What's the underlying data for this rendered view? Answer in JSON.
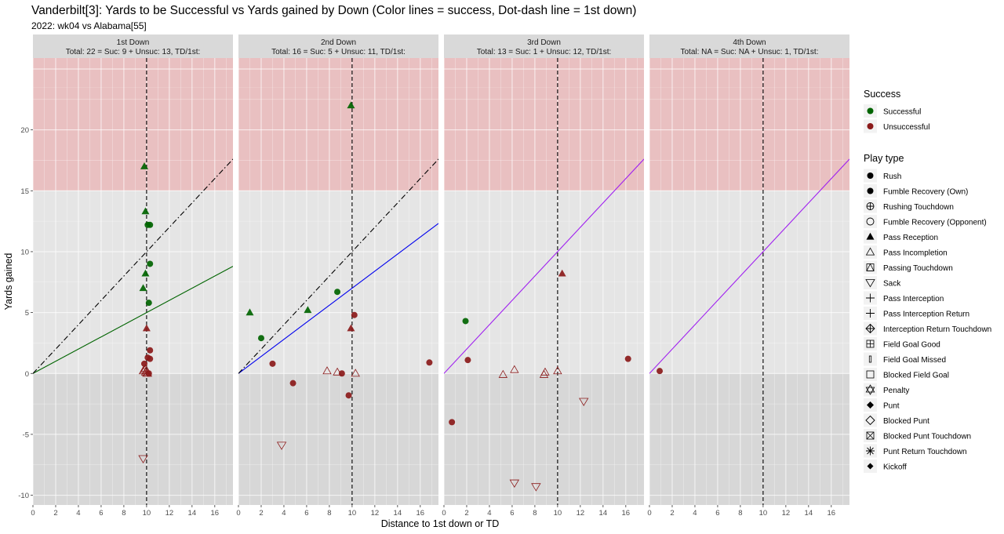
{
  "chart_data": {
    "type": "scatter",
    "title": "Vanderbilt[3]: Yards to be Successful vs Yards gained by Down  (Color lines = success, Dot-dash line = 1st down)",
    "subtitle": "2022: wk04 vs Alabama[55]",
    "xlabel": "Distance to 1st down or TD",
    "ylabel": "Yards gained",
    "xlim": [
      0,
      17.6
    ],
    "ylim": [
      -10.8,
      25.9
    ],
    "x_ticks": [
      0,
      2,
      4,
      6,
      8,
      10,
      12,
      14,
      16
    ],
    "y_ticks": [
      -10,
      -5,
      0,
      5,
      10,
      15,
      20
    ],
    "grid": true,
    "bands": [
      {
        "from": 15,
        "to": 23.5,
        "color": "#e9c0c1"
      },
      {
        "from": 0,
        "to": 15,
        "color": "#e5e5e5"
      },
      {
        "from": -10.8,
        "to": 0,
        "color": "#d7d7d7"
      }
    ],
    "colors": {
      "successful": "#006400",
      "unsuccessful": "#8b1a1a",
      "line_1st": "#006400",
      "line_2nd": "#0000ee",
      "line_3rd4th": "#a020f0"
    },
    "legend": {
      "position": "right",
      "success_title": "Success",
      "success": [
        {
          "label": "Successful",
          "color": "#006400"
        },
        {
          "label": "Unsuccessful",
          "color": "#8b1a1a"
        }
      ],
      "playtype_title": "Play type",
      "playtypes": [
        {
          "label": "Rush",
          "shape": "circle-filled"
        },
        {
          "label": "Fumble Recovery (Own)",
          "shape": "circle-filled"
        },
        {
          "label": "Rushing Touchdown",
          "shape": "circle-plus"
        },
        {
          "label": "Fumble Recovery (Opponent)",
          "shape": "circle-open"
        },
        {
          "label": "Pass Reception",
          "shape": "triangle-filled"
        },
        {
          "label": "Pass Incompletion",
          "shape": "triangle-open"
        },
        {
          "label": "Passing Touchdown",
          "shape": "square-triangle"
        },
        {
          "label": "Sack",
          "shape": "triangle-down-open"
        },
        {
          "label": "Pass Interception",
          "shape": "plus"
        },
        {
          "label": "Pass Interception Return",
          "shape": "plus"
        },
        {
          "label": "Interception Return Touchdown",
          "shape": "diamond-plus"
        },
        {
          "label": "Field Goal Good",
          "shape": "square-plus"
        },
        {
          "label": "Field Goal Missed",
          "shape": "small-rect"
        },
        {
          "label": "Blocked Field Goal",
          "shape": "square-open"
        },
        {
          "label": "Penalty",
          "shape": "star-of-david"
        },
        {
          "label": "Punt",
          "shape": "diamond-filled"
        },
        {
          "label": "Blocked Punt",
          "shape": "diamond-open"
        },
        {
          "label": "Blocked Punt Touchdown",
          "shape": "square-x"
        },
        {
          "label": "Punt Return Touchdown",
          "shape": "asterisk"
        },
        {
          "label": "Kickoff",
          "shape": "diamond-filled-small"
        }
      ]
    },
    "panels": [
      {
        "strip_title": "1st Down",
        "strip_subtitle": "Total: 22 = Suc: 9 + Unsuc: 13, TD/1st:",
        "success_slope": 0.5,
        "success_color": "#006400",
        "first_down_slope": 1.0,
        "show_first_down_line": true,
        "points": [
          {
            "x": 9.8,
            "y": 17.0,
            "shape": "triangle-filled",
            "success": true
          },
          {
            "x": 9.9,
            "y": 13.3,
            "shape": "triangle-filled",
            "success": true
          },
          {
            "x": 10.3,
            "y": 12.2,
            "shape": "circle-filled",
            "success": true
          },
          {
            "x": 10.1,
            "y": 12.2,
            "shape": "circle-filled",
            "success": true
          },
          {
            "x": 10.3,
            "y": 9.0,
            "shape": "circle-filled",
            "success": true
          },
          {
            "x": 9.9,
            "y": 8.2,
            "shape": "triangle-filled",
            "success": true
          },
          {
            "x": 9.7,
            "y": 7.0,
            "shape": "triangle-filled",
            "success": true
          },
          {
            "x": 10.2,
            "y": 5.8,
            "shape": "circle-filled",
            "success": true
          },
          {
            "x": 10.0,
            "y": 3.7,
            "shape": "triangle-filled",
            "success": false
          },
          {
            "x": 10.3,
            "y": 1.9,
            "shape": "circle-filled",
            "success": false
          },
          {
            "x": 10.1,
            "y": 1.3,
            "shape": "circle-filled",
            "success": false
          },
          {
            "x": 10.3,
            "y": 1.2,
            "shape": "circle-filled",
            "success": false
          },
          {
            "x": 9.8,
            "y": 0.8,
            "shape": "circle-filled",
            "success": false
          },
          {
            "x": 9.7,
            "y": 0.2,
            "shape": "triangle-open",
            "success": false
          },
          {
            "x": 9.9,
            "y": 0.1,
            "shape": "triangle-open",
            "success": false
          },
          {
            "x": 10.0,
            "y": 0.0,
            "shape": "triangle-open",
            "success": false
          },
          {
            "x": 10.2,
            "y": 0.0,
            "shape": "circle-filled",
            "success": false
          },
          {
            "x": 10.1,
            "y": 0.0,
            "shape": "triangle-open",
            "success": false
          },
          {
            "x": 9.8,
            "y": 0.3,
            "shape": "triangle-open",
            "success": false
          },
          {
            "x": 10.0,
            "y": 0.2,
            "shape": "triangle-open",
            "success": false
          },
          {
            "x": 9.9,
            "y": 0.4,
            "shape": "triangle-open",
            "success": false
          },
          {
            "x": 9.7,
            "y": -7.0,
            "shape": "triangle-down-open",
            "success": false
          }
        ]
      },
      {
        "strip_title": "2nd Down",
        "strip_subtitle": "Total: 16 = Suc: 5 + Unsuc: 11, TD/1st:",
        "success_slope": 0.7,
        "success_color": "#0000ee",
        "first_down_slope": 1.0,
        "show_first_down_line": true,
        "points": [
          {
            "x": 9.9,
            "y": 22.0,
            "shape": "triangle-filled",
            "success": true
          },
          {
            "x": 1.0,
            "y": 5.0,
            "shape": "triangle-filled",
            "success": true
          },
          {
            "x": 2.0,
            "y": 2.9,
            "shape": "circle-filled",
            "success": true
          },
          {
            "x": 6.1,
            "y": 5.2,
            "shape": "triangle-filled",
            "success": true
          },
          {
            "x": 8.7,
            "y": 6.7,
            "shape": "circle-filled",
            "success": true
          },
          {
            "x": 10.2,
            "y": 4.8,
            "shape": "circle-filled",
            "success": false
          },
          {
            "x": 9.9,
            "y": 3.7,
            "shape": "triangle-filled",
            "success": false
          },
          {
            "x": 3.0,
            "y": 0.8,
            "shape": "circle-filled",
            "success": false
          },
          {
            "x": 4.8,
            "y": -0.8,
            "shape": "circle-filled",
            "success": false
          },
          {
            "x": 7.8,
            "y": 0.2,
            "shape": "triangle-open",
            "success": false
          },
          {
            "x": 8.7,
            "y": 0.1,
            "shape": "triangle-open",
            "success": false
          },
          {
            "x": 9.1,
            "y": 0.0,
            "shape": "circle-filled",
            "success": false
          },
          {
            "x": 10.3,
            "y": 0.0,
            "shape": "triangle-open",
            "success": false
          },
          {
            "x": 9.7,
            "y": -1.8,
            "shape": "circle-filled",
            "success": false
          },
          {
            "x": 16.8,
            "y": 0.9,
            "shape": "circle-filled",
            "success": false
          },
          {
            "x": 3.8,
            "y": -5.9,
            "shape": "triangle-down-open",
            "success": false
          }
        ]
      },
      {
        "strip_title": "3rd Down",
        "strip_subtitle": "Total: 13 = Suc: 1 + Unsuc: 12, TD/1st:",
        "success_slope": 1.0,
        "success_color": "#a020f0",
        "first_down_slope": 1.0,
        "show_first_down_line": false,
        "points": [
          {
            "x": 1.9,
            "y": 4.3,
            "shape": "circle-filled",
            "success": true
          },
          {
            "x": 10.4,
            "y": 8.2,
            "shape": "triangle-filled",
            "success": false
          },
          {
            "x": 2.1,
            "y": 1.1,
            "shape": "circle-filled",
            "success": false
          },
          {
            "x": 0.7,
            "y": -4.0,
            "shape": "circle-filled",
            "success": false
          },
          {
            "x": 5.2,
            "y": -0.1,
            "shape": "triangle-open",
            "success": false
          },
          {
            "x": 6.2,
            "y": 0.3,
            "shape": "triangle-open",
            "success": false
          },
          {
            "x": 8.8,
            "y": -0.1,
            "shape": "triangle-open",
            "success": false
          },
          {
            "x": 8.9,
            "y": 0.1,
            "shape": "triangle-open",
            "success": false
          },
          {
            "x": 10.0,
            "y": 0.2,
            "shape": "triangle-open",
            "success": false
          },
          {
            "x": 12.3,
            "y": -2.3,
            "shape": "triangle-down-open",
            "success": false
          },
          {
            "x": 6.2,
            "y": -9.0,
            "shape": "triangle-down-open",
            "success": false
          },
          {
            "x": 8.1,
            "y": -9.3,
            "shape": "triangle-down-open",
            "success": false
          },
          {
            "x": 16.2,
            "y": 1.2,
            "shape": "circle-filled",
            "success": false
          }
        ]
      },
      {
        "strip_title": "4th Down",
        "strip_subtitle": "Total: NA = Suc: NA + Unsuc: 1, TD/1st:",
        "success_slope": 1.0,
        "success_color": "#a020f0",
        "first_down_slope": 1.0,
        "show_first_down_line": false,
        "points": [
          {
            "x": 0.9,
            "y": 0.2,
            "shape": "circle-filled",
            "success": false
          }
        ]
      }
    ]
  }
}
